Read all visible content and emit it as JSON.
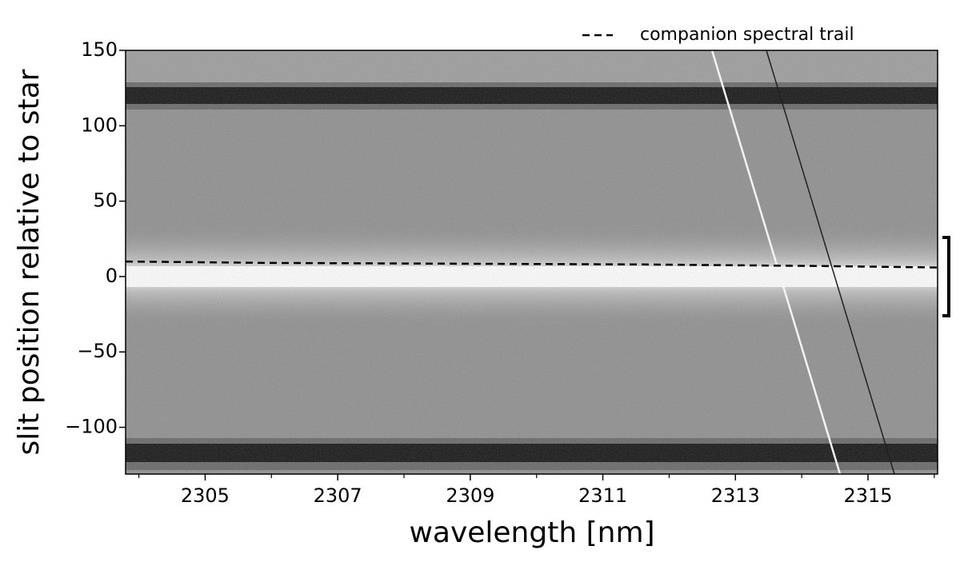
{
  "chart_data": {
    "type": "line",
    "xlabel": "wavelength [nm]",
    "ylabel": "slit position relative to star",
    "xlim": [
      2303.8,
      2316.05
    ],
    "ylim": [
      -131,
      150
    ],
    "xticks": [
      2305,
      2307,
      2309,
      2311,
      2313,
      2315
    ],
    "xminorticks": [
      2304,
      2306,
      2308,
      2310,
      2312,
      2314,
      2316
    ],
    "yticks": [
      150,
      100,
      50,
      0,
      {
        "value": -50,
        "label": "−50"
      },
      {
        "value": -100,
        "label": "−100"
      }
    ],
    "legend": "upper right",
    "series": [
      {
        "name": "companion spectral trail",
        "color": "#000000",
        "dash": true,
        "x": [
          2303.8,
          2306,
          2311.6,
          2314.2,
          2316.05
        ],
        "values": [
          10,
          9,
          8,
          7,
          6
        ]
      }
    ]
  }
}
